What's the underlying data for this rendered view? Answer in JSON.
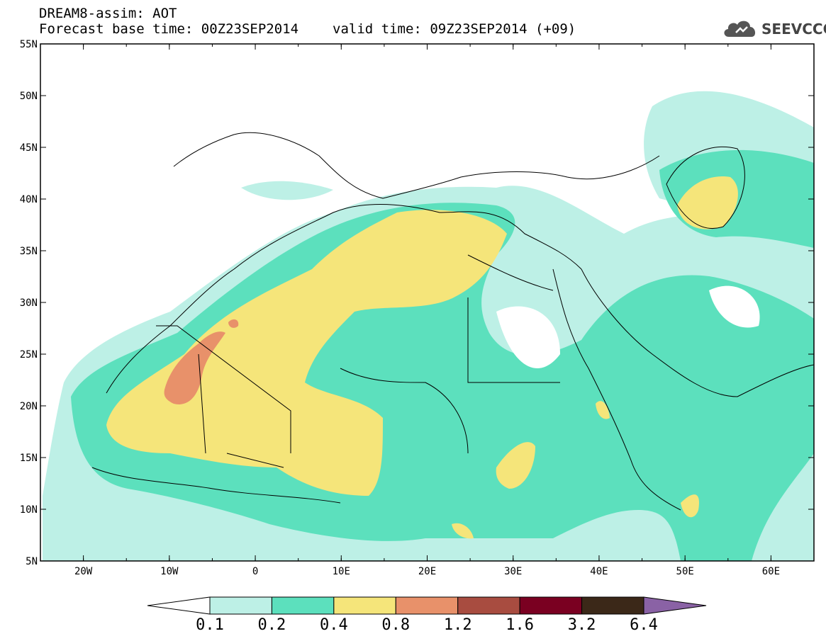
{
  "header": {
    "title": "DREAM8-assim: AOT",
    "base_time": "Forecast base time: 00Z23SEP2014",
    "valid_time": "valid time: 09Z23SEP2014 (+09)"
  },
  "logo": {
    "text": "SEEVCCC",
    "icon": "cloud-icon"
  },
  "axes": {
    "lat_labels": [
      "55N",
      "50N",
      "45N",
      "40N",
      "35N",
      "30N",
      "25N",
      "20N",
      "15N",
      "10N",
      "5N"
    ],
    "lon_labels": [
      "20W",
      "10W",
      "0",
      "10E",
      "20E",
      "30E",
      "40E",
      "50E",
      "60E"
    ]
  },
  "colorbar": {
    "labels": [
      "0.1",
      "0.2",
      "0.4",
      "0.8",
      "1.2",
      "1.6",
      "3.2",
      "6.4"
    ],
    "colors": [
      "#ffffff",
      "#bdf0e6",
      "#5ce0bd",
      "#f5e57a",
      "#e8916a",
      "#a84c40",
      "#7a0021",
      "#3b2818",
      "#8a62a5"
    ]
  },
  "chart_data": {
    "type": "heatmap",
    "title": "DREAM8-assim: AOT",
    "variable": "AOT",
    "levels": [
      0.1,
      0.2,
      0.4,
      0.8,
      1.2,
      1.6,
      3.2,
      6.4
    ],
    "lon_range": [
      -25,
      65
    ],
    "lat_range": [
      5,
      55
    ]
  }
}
